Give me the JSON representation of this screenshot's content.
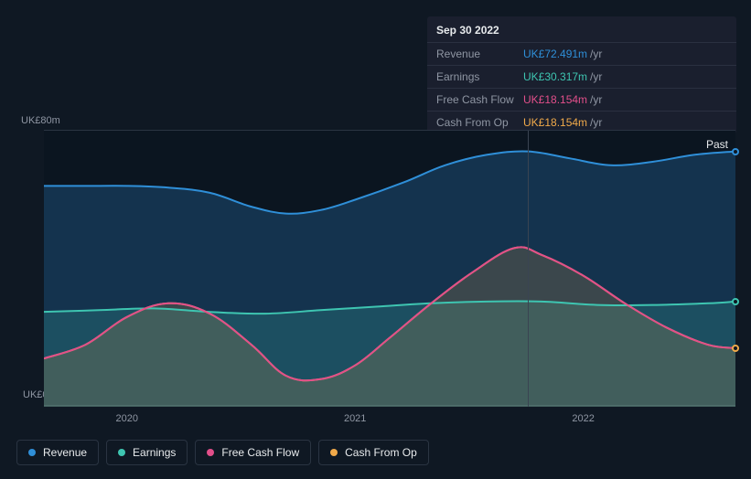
{
  "tooltip": {
    "date": "Sep 30 2022",
    "rows": [
      {
        "label": "Revenue",
        "value": "UK£72.491m",
        "unit": "/yr",
        "color": "#2f8fd8"
      },
      {
        "label": "Earnings",
        "value": "UK£30.317m",
        "unit": "/yr",
        "color": "#3ec5b1"
      },
      {
        "label": "Free Cash Flow",
        "value": "UK£18.154m",
        "unit": "/yr",
        "color": "#e24f8a"
      },
      {
        "label": "Cash From Op",
        "value": "UK£18.154m",
        "unit": "/yr",
        "color": "#f0a94a"
      }
    ]
  },
  "chart": {
    "type": "area",
    "y_top_label": "UK£80m",
    "y_bottom_label": "UK£0",
    "past_label": "Past",
    "ymin": 0,
    "ymax": 80,
    "x_years": [
      "2020",
      "2021",
      "2022"
    ],
    "x_year_positions": [
      0.12,
      0.45,
      0.78
    ],
    "highlight_x": 0.7,
    "background": "#0f1823",
    "plot_bg": "#0b1520",
    "grid_color": "#2a3442",
    "series": [
      {
        "name": "Revenue",
        "color": "#2f8fd8",
        "fill_opacity": 0.25,
        "points": [
          [
            0.0,
            64
          ],
          [
            0.06,
            64
          ],
          [
            0.12,
            64
          ],
          [
            0.18,
            63.5
          ],
          [
            0.24,
            62
          ],
          [
            0.3,
            58
          ],
          [
            0.35,
            56
          ],
          [
            0.4,
            57
          ],
          [
            0.45,
            60
          ],
          [
            0.52,
            65
          ],
          [
            0.58,
            70
          ],
          [
            0.64,
            73
          ],
          [
            0.7,
            74
          ],
          [
            0.76,
            72
          ],
          [
            0.82,
            70
          ],
          [
            0.88,
            71
          ],
          [
            0.94,
            73
          ],
          [
            1.0,
            74
          ]
        ]
      },
      {
        "name": "Earnings",
        "color": "#3ec5b1",
        "fill_opacity": 0.2,
        "points": [
          [
            0.0,
            27.5
          ],
          [
            0.08,
            28
          ],
          [
            0.16,
            28.5
          ],
          [
            0.24,
            27.5
          ],
          [
            0.32,
            27
          ],
          [
            0.4,
            28
          ],
          [
            0.48,
            29
          ],
          [
            0.56,
            30
          ],
          [
            0.64,
            30.5
          ],
          [
            0.72,
            30.5
          ],
          [
            0.8,
            29.5
          ],
          [
            0.88,
            29.5
          ],
          [
            0.96,
            30
          ],
          [
            1.0,
            30.5
          ]
        ]
      },
      {
        "name": "Cash From Op",
        "color": "#f0a94a",
        "fill_opacity": 0.18,
        "points": [
          [
            0.0,
            14
          ],
          [
            0.06,
            18
          ],
          [
            0.12,
            26
          ],
          [
            0.18,
            30
          ],
          [
            0.24,
            27
          ],
          [
            0.3,
            18
          ],
          [
            0.35,
            9
          ],
          [
            0.4,
            8
          ],
          [
            0.45,
            12
          ],
          [
            0.5,
            20
          ],
          [
            0.56,
            30
          ],
          [
            0.62,
            39
          ],
          [
            0.68,
            46
          ],
          [
            0.72,
            44
          ],
          [
            0.78,
            38
          ],
          [
            0.84,
            30
          ],
          [
            0.9,
            23
          ],
          [
            0.96,
            18
          ],
          [
            1.0,
            17
          ]
        ]
      },
      {
        "name": "Free Cash Flow",
        "color": "#e24f8a",
        "fill_opacity": 0.0,
        "points": [
          [
            0.0,
            14
          ],
          [
            0.06,
            18
          ],
          [
            0.12,
            26
          ],
          [
            0.18,
            30
          ],
          [
            0.24,
            27
          ],
          [
            0.3,
            18
          ],
          [
            0.35,
            9
          ],
          [
            0.4,
            8
          ],
          [
            0.45,
            12
          ],
          [
            0.5,
            20
          ],
          [
            0.56,
            30
          ],
          [
            0.62,
            39
          ],
          [
            0.68,
            46
          ],
          [
            0.72,
            44
          ],
          [
            0.78,
            38
          ],
          [
            0.84,
            30
          ],
          [
            0.9,
            23
          ],
          [
            0.96,
            18
          ],
          [
            1.0,
            17
          ]
        ]
      }
    ]
  },
  "legend": [
    {
      "label": "Revenue",
      "color": "#2f8fd8"
    },
    {
      "label": "Earnings",
      "color": "#3ec5b1"
    },
    {
      "label": "Free Cash Flow",
      "color": "#e24f8a"
    },
    {
      "label": "Cash From Op",
      "color": "#f0a94a"
    }
  ]
}
